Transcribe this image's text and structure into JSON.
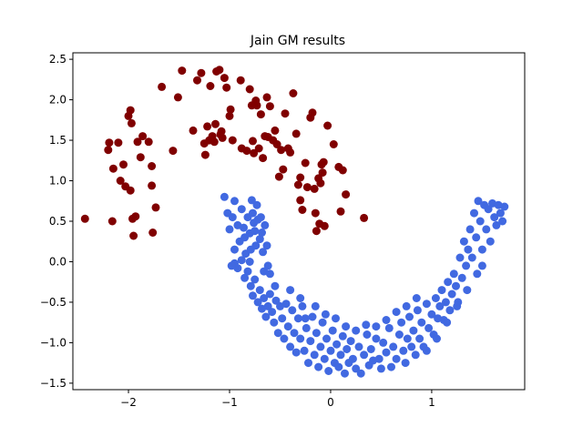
{
  "chart_data": {
    "type": "scatter",
    "title": "Jain GM results",
    "xlabel": "",
    "ylabel": "",
    "xlim": [
      -2.55,
      1.92
    ],
    "ylim": [
      -1.58,
      2.58
    ],
    "xticks": [
      -2,
      -1,
      0,
      1
    ],
    "xtick_labels": [
      "−2",
      "−1",
      "0",
      "1"
    ],
    "yticks": [
      -1.5,
      -1.0,
      -0.5,
      0.0,
      0.5,
      1.0,
      1.5,
      2.0,
      2.5
    ],
    "ytick_labels": [
      "−1.5",
      "−1.0",
      "−0.5",
      "0.0",
      "0.5",
      "1.0",
      "1.5",
      "2.0",
      "2.5"
    ],
    "grid": false,
    "legend": "none",
    "series": [
      {
        "color": "#800000",
        "points": [
          [
            -2.43,
            0.53
          ],
          [
            -2.2,
            1.38
          ],
          [
            -2.19,
            1.47
          ],
          [
            -2.16,
            0.5
          ],
          [
            -2.15,
            1.15
          ],
          [
            -2.1,
            1.47
          ],
          [
            -2.08,
            1.0
          ],
          [
            -2.05,
            1.2
          ],
          [
            -2.03,
            0.93
          ],
          [
            -2.0,
            1.8
          ],
          [
            -1.98,
            1.87
          ],
          [
            -1.98,
            0.88
          ],
          [
            -1.97,
            1.71
          ],
          [
            -1.96,
            0.53
          ],
          [
            -1.95,
            0.32
          ],
          [
            -1.93,
            0.56
          ],
          [
            -1.91,
            1.48
          ],
          [
            -1.88,
            1.29
          ],
          [
            -1.86,
            1.55
          ],
          [
            -1.8,
            1.48
          ],
          [
            -1.77,
            1.18
          ],
          [
            -1.77,
            0.94
          ],
          [
            -1.76,
            0.36
          ],
          [
            -1.73,
            0.67
          ],
          [
            -1.67,
            2.16
          ],
          [
            -1.56,
            1.37
          ],
          [
            -1.51,
            2.03
          ],
          [
            -1.47,
            2.36
          ],
          [
            -1.36,
            1.62
          ],
          [
            -1.32,
            2.24
          ],
          [
            -1.28,
            2.33
          ],
          [
            -1.25,
            1.46
          ],
          [
            -1.24,
            1.32
          ],
          [
            -1.22,
            1.67
          ],
          [
            -1.2,
            1.5
          ],
          [
            -1.19,
            2.17
          ],
          [
            -1.17,
            1.55
          ],
          [
            -1.15,
            1.48
          ],
          [
            -1.14,
            1.7
          ],
          [
            -1.13,
            2.35
          ],
          [
            -1.1,
            2.37
          ],
          [
            -1.09,
            1.57
          ],
          [
            -1.08,
            1.61
          ],
          [
            -1.07,
            1.53
          ],
          [
            -1.05,
            2.27
          ],
          [
            -1.03,
            2.15
          ],
          [
            -1.0,
            1.8
          ],
          [
            -0.99,
            1.88
          ],
          [
            -0.97,
            1.5
          ],
          [
            -0.89,
            2.24
          ],
          [
            -0.88,
            1.4
          ],
          [
            -0.83,
            1.37
          ],
          [
            -0.8,
            2.13
          ],
          [
            -0.78,
            1.93
          ],
          [
            -0.77,
            1.49
          ],
          [
            -0.76,
            1.34
          ],
          [
            -0.74,
            1.99
          ],
          [
            -0.73,
            1.93
          ],
          [
            -0.71,
            1.4
          ],
          [
            -0.69,
            1.82
          ],
          [
            -0.67,
            1.28
          ],
          [
            -0.65,
            1.55
          ],
          [
            -0.63,
            2.03
          ],
          [
            -0.62,
            1.54
          ],
          [
            -0.6,
            1.92
          ],
          [
            -0.57,
            1.5
          ],
          [
            -0.55,
            1.62
          ],
          [
            -0.53,
            1.45
          ],
          [
            -0.51,
            1.05
          ],
          [
            -0.49,
            1.38
          ],
          [
            -0.47,
            1.14
          ],
          [
            -0.45,
            1.83
          ],
          [
            -0.42,
            1.4
          ],
          [
            -0.4,
            1.35
          ],
          [
            -0.37,
            2.08
          ],
          [
            -0.34,
            1.58
          ],
          [
            -0.32,
            0.95
          ],
          [
            -0.3,
            1.04
          ],
          [
            -0.3,
            0.76
          ],
          [
            -0.28,
            0.64
          ],
          [
            -0.25,
            1.22
          ],
          [
            -0.23,
            0.92
          ],
          [
            -0.2,
            1.78
          ],
          [
            -0.18,
            1.84
          ],
          [
            -0.16,
            0.9
          ],
          [
            -0.15,
            0.6
          ],
          [
            -0.14,
            0.38
          ],
          [
            -0.12,
            1.03
          ],
          [
            -0.11,
            0.47
          ],
          [
            -0.1,
            0.97
          ],
          [
            -0.09,
            1.2
          ],
          [
            -0.08,
            1.1
          ],
          [
            -0.07,
            1.23
          ],
          [
            -0.06,
            0.44
          ],
          [
            -0.03,
            1.68
          ],
          [
            0.03,
            1.45
          ],
          [
            0.08,
            1.17
          ],
          [
            0.1,
            0.62
          ],
          [
            0.12,
            1.13
          ],
          [
            0.15,
            0.83
          ],
          [
            0.33,
            0.54
          ]
        ]
      },
      {
        "color": "#4169e1",
        "points": [
          [
            -1.05,
            0.8
          ],
          [
            -1.02,
            0.6
          ],
          [
            -0.97,
            0.55
          ],
          [
            -0.95,
            0.75
          ],
          [
            -0.92,
            0.45
          ],
          [
            -0.9,
            0.25
          ],
          [
            -0.88,
            0.65
          ],
          [
            -0.86,
            0.42
          ],
          [
            -0.85,
            0.3
          ],
          [
            -0.84,
            0.1
          ],
          [
            -0.82,
            0.55
          ],
          [
            -0.8,
            0.35
          ],
          [
            -0.79,
            0.15
          ],
          [
            -0.78,
            0.76
          ],
          [
            -0.77,
            0.6
          ],
          [
            -0.76,
            0.48
          ],
          [
            -0.75,
            0.38
          ],
          [
            -0.74,
            0.2
          ],
          [
            -0.73,
            0.7
          ],
          [
            -0.72,
            0.52
          ],
          [
            -0.7,
            0.28
          ],
          [
            -0.69,
            0.55
          ],
          [
            -0.68,
            0.36
          ],
          [
            -0.67,
            0.12
          ],
          [
            -0.66,
            -0.12
          ],
          [
            -0.65,
            0.45
          ],
          [
            -0.63,
            0.2
          ],
          [
            -0.62,
            -0.05
          ],
          [
            -0.95,
            -0.02
          ],
          [
            -0.92,
            -0.08
          ],
          [
            -0.88,
            0.02
          ],
          [
            -0.85,
            -0.2
          ],
          [
            -0.82,
            -0.12
          ],
          [
            -0.79,
            -0.3
          ],
          [
            -0.77,
            -0.42
          ],
          [
            -0.75,
            -0.22
          ],
          [
            -0.72,
            -0.5
          ],
          [
            -0.7,
            -0.35
          ],
          [
            -0.68,
            -0.58
          ],
          [
            -0.66,
            -0.45
          ],
          [
            -0.64,
            -0.68
          ],
          [
            -0.62,
            -0.55
          ],
          [
            -0.6,
            -0.4
          ],
          [
            -0.58,
            -0.62
          ],
          [
            -0.56,
            -0.75
          ],
          [
            -0.54,
            -0.48
          ],
          [
            -0.52,
            -0.88
          ],
          [
            -0.5,
            -0.55
          ],
          [
            -0.48,
            -0.7
          ],
          [
            -0.46,
            -0.95
          ],
          [
            -0.44,
            -0.52
          ],
          [
            -0.42,
            -0.8
          ],
          [
            -0.4,
            -1.05
          ],
          [
            -0.38,
            -0.6
          ],
          [
            -0.36,
            -0.88
          ],
          [
            -0.34,
            -1.12
          ],
          [
            -0.32,
            -0.7
          ],
          [
            -0.3,
            -0.95
          ],
          [
            -0.28,
            -0.55
          ],
          [
            -0.26,
            -1.1
          ],
          [
            -0.24,
            -0.82
          ],
          [
            -0.22,
            -1.25
          ],
          [
            -0.2,
            -0.98
          ],
          [
            -0.18,
            -0.68
          ],
          [
            -0.16,
            -1.15
          ],
          [
            -0.14,
            -0.88
          ],
          [
            -0.12,
            -1.3
          ],
          [
            -0.1,
            -1.05
          ],
          [
            -0.08,
            -0.75
          ],
          [
            -0.06,
            -1.2
          ],
          [
            -0.04,
            -0.95
          ],
          [
            -0.02,
            -1.35
          ],
          [
            0.0,
            -1.1
          ],
          [
            0.02,
            -0.85
          ],
          [
            0.04,
            -1.25
          ],
          [
            0.06,
            -1.02
          ],
          [
            0.08,
            -1.3
          ],
          [
            0.1,
            -1.15
          ],
          [
            0.12,
            -0.92
          ],
          [
            0.14,
            -1.38
          ],
          [
            0.16,
            -1.08
          ],
          [
            0.18,
            -1.25
          ],
          [
            0.2,
            -0.98
          ],
          [
            0.22,
            -1.2
          ],
          [
            0.25,
            -1.32
          ],
          [
            0.28,
            -1.05
          ],
          [
            0.3,
            -1.38
          ],
          [
            0.33,
            -1.15
          ],
          [
            0.36,
            -0.9
          ],
          [
            0.38,
            -1.28
          ],
          [
            0.4,
            -1.08
          ],
          [
            0.42,
            -1.22
          ],
          [
            0.45,
            -0.95
          ],
          [
            0.48,
            -1.2
          ],
          [
            0.5,
            -1.32
          ],
          [
            0.52,
            -1.0
          ],
          [
            0.55,
            -1.12
          ],
          [
            0.58,
            -0.82
          ],
          [
            0.6,
            -1.3
          ],
          [
            0.62,
            -1.05
          ],
          [
            0.65,
            -1.2
          ],
          [
            0.68,
            -0.9
          ],
          [
            0.7,
            -0.75
          ],
          [
            0.72,
            -1.1
          ],
          [
            0.74,
            -1.25
          ],
          [
            0.76,
            -0.95
          ],
          [
            0.78,
            -0.68
          ],
          [
            0.8,
            -1.05
          ],
          [
            0.82,
            -0.85
          ],
          [
            0.84,
            -1.15
          ],
          [
            0.86,
            -0.6
          ],
          [
            0.88,
            -0.95
          ],
          [
            0.9,
            -0.75
          ],
          [
            0.92,
            -1.05
          ],
          [
            0.95,
            -0.52
          ],
          [
            0.97,
            -0.82
          ],
          [
            1.0,
            -0.65
          ],
          [
            1.02,
            -0.9
          ],
          [
            1.04,
            -0.45
          ],
          [
            1.06,
            -0.7
          ],
          [
            1.08,
            -0.55
          ],
          [
            1.1,
            -0.35
          ],
          [
            1.12,
            -0.72
          ],
          [
            1.14,
            -0.5
          ],
          [
            1.16,
            -0.25
          ],
          [
            1.18,
            -0.6
          ],
          [
            1.2,
            -0.4
          ],
          [
            1.22,
            -0.15
          ],
          [
            1.24,
            -0.3
          ],
          [
            1.26,
            -0.5
          ],
          [
            1.28,
            0.05
          ],
          [
            1.3,
            -0.2
          ],
          [
            1.32,
            0.25
          ],
          [
            1.34,
            -0.05
          ],
          [
            1.36,
            0.15
          ],
          [
            1.38,
            0.4
          ],
          [
            1.4,
            0.05
          ],
          [
            1.42,
            0.6
          ],
          [
            1.44,
            0.3
          ],
          [
            1.46,
            0.75
          ],
          [
            1.48,
            0.5
          ],
          [
            1.5,
            0.15
          ],
          [
            1.52,
            0.7
          ],
          [
            1.54,
            0.4
          ],
          [
            1.56,
            0.65
          ],
          [
            1.58,
            0.25
          ],
          [
            1.6,
            0.72
          ],
          [
            1.62,
            0.55
          ],
          [
            1.64,
            0.45
          ],
          [
            1.66,
            0.7
          ],
          [
            1.68,
            0.6
          ],
          [
            1.7,
            0.5
          ],
          [
            1.72,
            0.68
          ],
          [
            1.5,
            -0.05
          ],
          [
            1.45,
            -0.15
          ],
          [
            1.35,
            -0.35
          ],
          [
            1.25,
            -0.55
          ],
          [
            1.15,
            -0.75
          ],
          [
            1.05,
            -0.95
          ],
          [
            0.95,
            -1.1
          ],
          [
            -0.4,
            -0.35
          ],
          [
            -0.3,
            -0.45
          ],
          [
            -0.25,
            -0.7
          ],
          [
            -0.15,
            -0.55
          ],
          [
            -0.05,
            -0.65
          ],
          [
            0.05,
            -0.7
          ],
          [
            0.15,
            -0.8
          ],
          [
            0.25,
            -0.85
          ],
          [
            0.35,
            -0.78
          ],
          [
            0.45,
            -0.8
          ],
          [
            0.55,
            -0.72
          ],
          [
            0.65,
            -0.62
          ],
          [
            0.75,
            -0.55
          ],
          [
            0.85,
            -0.45
          ],
          [
            -0.55,
            -0.3
          ],
          [
            -0.6,
            -0.15
          ],
          [
            -0.8,
            0.0
          ],
          [
            -0.95,
            0.15
          ],
          [
            -1.0,
            0.4
          ],
          [
            -0.98,
            -0.05
          ]
        ]
      }
    ]
  }
}
